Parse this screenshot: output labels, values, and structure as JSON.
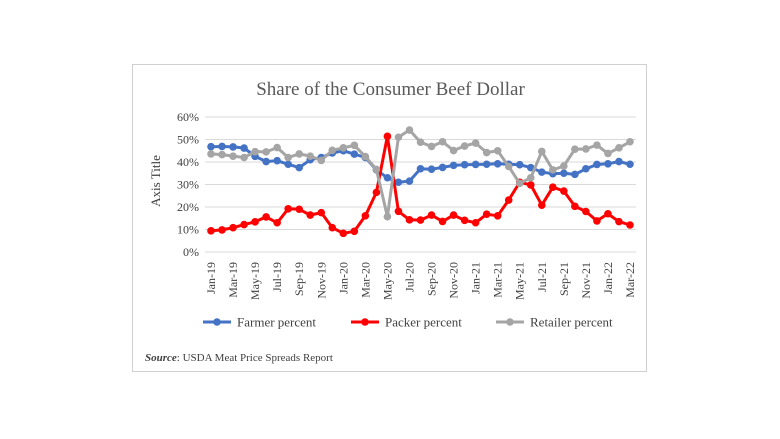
{
  "chart_data": {
    "type": "line",
    "title": "Share of the Consumer Beef Dollar",
    "ylabel": "Axis Title",
    "xlabel": "",
    "ylim": [
      0,
      60
    ],
    "yticks": [
      "0%",
      "10%",
      "20%",
      "30%",
      "40%",
      "50%",
      "60%"
    ],
    "ytick_values": [
      0,
      10,
      20,
      30,
      40,
      50,
      60
    ],
    "grid": "horizontal",
    "legend_position": "bottom",
    "categories": [
      "Jan-19",
      "Feb-19",
      "Mar-19",
      "Apr-19",
      "May-19",
      "Jun-19",
      "Jul-19",
      "Aug-19",
      "Sep-19",
      "Oct-19",
      "Nov-19",
      "Dec-19",
      "Jan-20",
      "Feb-20",
      "Mar-20",
      "Apr-20",
      "May-20",
      "Jun-20",
      "Jul-20",
      "Aug-20",
      "Sep-20",
      "Oct-20",
      "Nov-20",
      "Dec-20",
      "Jan-21",
      "Feb-21",
      "Mar-21",
      "Apr-21",
      "May-21",
      "Jun-21",
      "Jul-21",
      "Aug-21",
      "Sep-21",
      "Oct-21",
      "Nov-21",
      "Dec-21",
      "Jan-22",
      "Feb-22",
      "Mar-22"
    ],
    "xtick_labels": [
      "Jan-19",
      "Mar-19",
      "May-19",
      "Jul-19",
      "Sep-19",
      "Nov-19",
      "Jan-20",
      "Mar-20",
      "May-20",
      "Jul-20",
      "Sep-20",
      "Nov-20",
      "Jan-21",
      "Mar-21",
      "May-21",
      "Jul-21",
      "Sep-21",
      "Nov-21",
      "Jan-22",
      "Mar-22"
    ],
    "series": [
      {
        "name": "Farmer percent",
        "color": "#4472c4",
        "values": [
          46.8,
          46.9,
          46.7,
          46.2,
          42.5,
          40.2,
          40.6,
          39.0,
          37.5,
          41.0,
          42.0,
          44.0,
          45.0,
          43.5,
          42.0,
          36.5,
          33.0,
          31.0,
          31.5,
          37.0,
          36.8,
          37.6,
          38.5,
          38.8,
          38.9,
          39.0,
          39.2,
          39.0,
          38.8,
          37.5,
          35.5,
          34.8,
          35.0,
          34.5,
          37.0,
          38.9,
          39.2,
          40.2,
          39.0
        ]
      },
      {
        "name": "Packer percent",
        "color": "#ff0000",
        "values": [
          9.4,
          9.8,
          10.8,
          12.2,
          13.4,
          15.6,
          13.0,
          19.2,
          19.0,
          16.4,
          17.5,
          10.8,
          8.3,
          9.2,
          16.1,
          26.5,
          51.4,
          18.1,
          14.3,
          14.2,
          16.4,
          13.6,
          16.4,
          14.1,
          13.0,
          16.8,
          16.1,
          23.1,
          31.0,
          29.8,
          20.8,
          28.8,
          27.1,
          20.3,
          18.0,
          13.8,
          17.0,
          13.5,
          12.0
        ]
      },
      {
        "name": "Retailer percent",
        "color": "#a5a5a5",
        "values": [
          43.6,
          43.3,
          42.6,
          42.0,
          44.6,
          44.5,
          46.4,
          42.0,
          43.6,
          42.6,
          40.7,
          45.2,
          46.3,
          47.4,
          42.4,
          36.7,
          15.7,
          51.0,
          54.2,
          48.8,
          46.9,
          49.0,
          45.1,
          47.1,
          48.4,
          44.2,
          45.0,
          38.0,
          30.5,
          33.0,
          44.7,
          36.5,
          38.2,
          45.7,
          45.8,
          47.5,
          43.8,
          46.3,
          49.0
        ]
      }
    ]
  },
  "source": {
    "label": "Source",
    "text": ": USDA Meat Price Spreads Report"
  }
}
